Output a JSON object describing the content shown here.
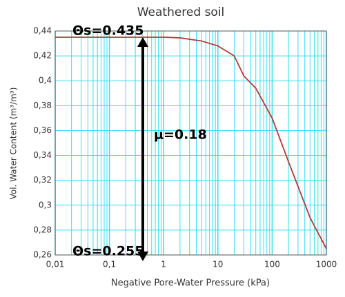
{
  "chart_data": {
    "type": "line",
    "title": "Weathered soil",
    "x_label": "Negative Pore-Water Pressure (kPa)",
    "y_label": "Vol. Water Content (m³/m³)",
    "log_x": true,
    "grid": true,
    "minor_grid": true,
    "grid_color": "#33e0ee",
    "xlim": [
      0.01,
      1000
    ],
    "xticks": [
      {
        "value": 0.01,
        "label": "0,01"
      },
      {
        "value": 0.1,
        "label": "0,1"
      },
      1,
      10,
      100,
      1000
    ],
    "ylim": [
      0.26,
      0.44
    ],
    "yticks": [
      {
        "value": 0.26,
        "label": "0,26"
      },
      {
        "value": 0.28,
        "label": "0,28"
      },
      {
        "value": 0.3,
        "label": "0,3"
      },
      {
        "value": 0.32,
        "label": "0,32"
      },
      {
        "value": 0.34,
        "label": "0,34"
      },
      {
        "value": 0.36,
        "label": "0,36"
      },
      {
        "value": 0.38,
        "label": "0,38"
      },
      {
        "value": 0.4,
        "label": "0,4"
      },
      {
        "value": 0.42,
        "label": "0,42"
      },
      {
        "value": 0.44,
        "label": "0,44"
      }
    ],
    "series": [
      {
        "color": "#b03a3a",
        "x": [
          0.01,
          0.1,
          1,
          2,
          5,
          10,
          20,
          30,
          50,
          100,
          200,
          500,
          1000
        ],
        "values": [
          0.435,
          0.435,
          0.435,
          0.4345,
          0.432,
          0.428,
          0.42,
          0.404,
          0.394,
          0.37,
          0.335,
          0.29,
          0.265
        ]
      }
    ],
    "annotations": [
      {
        "text": "Θs=0.435",
        "value": 0.435
      },
      {
        "text": "Θs=0.255",
        "value": 0.255
      },
      {
        "text": "μ=0.18"
      }
    ]
  }
}
